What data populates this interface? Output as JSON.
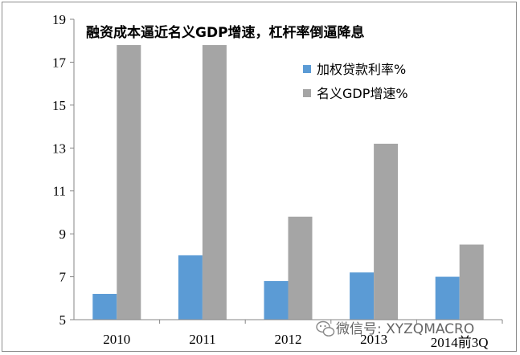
{
  "chart_data": {
    "type": "bar",
    "title": "融资成本逼近名义GDP增速，杠杆率倒逼降息",
    "categories": [
      "2010",
      "2011",
      "2012",
      "2013",
      "2014前3Q"
    ],
    "series": [
      {
        "name": "加权贷款利率%",
        "values": [
          6.2,
          8.0,
          6.8,
          7.2,
          7.0
        ],
        "color": "#5b9bd5"
      },
      {
        "name": "名义GDP增速%",
        "values": [
          17.8,
          17.8,
          9.8,
          13.2,
          8.5
        ],
        "color": "#a5a5a5"
      }
    ],
    "ylim": [
      5,
      19
    ],
    "yticks": [
      5,
      7,
      9,
      11,
      13,
      15,
      17,
      19
    ],
    "legend_position": "top-right",
    "grid": false
  },
  "watermark": {
    "text": "微信号: XYZQMACRO",
    "icon": "wechat-icon"
  }
}
